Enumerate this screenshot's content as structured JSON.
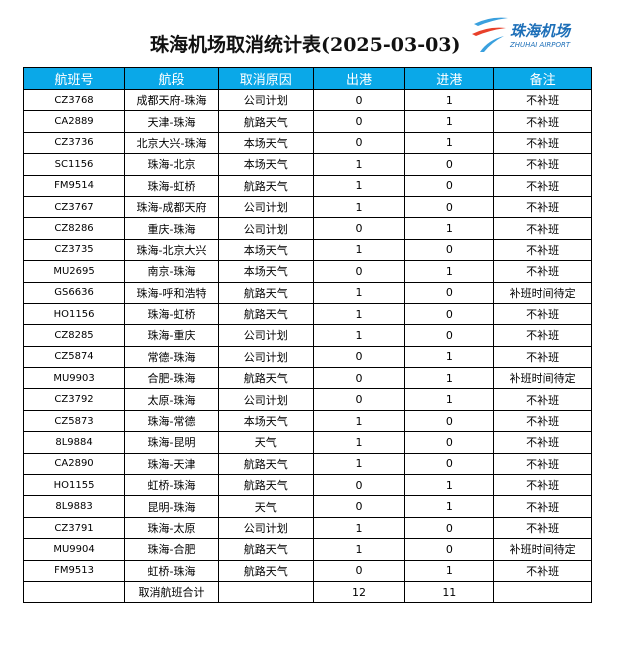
{
  "title": "珠海机场取消统计表(2025-03-03)",
  "logo": {
    "cn": "珠海机场",
    "en": "ZHUHAI AIRPORT"
  },
  "headers": [
    "航班号",
    "航段",
    "取消原因",
    "出港",
    "进港",
    "备注"
  ],
  "rows": [
    [
      "CZ3768",
      "成都天府-珠海",
      "公司计划",
      "0",
      "1",
      "不补班"
    ],
    [
      "CA2889",
      "天津-珠海",
      "航路天气",
      "0",
      "1",
      "不补班"
    ],
    [
      "CZ3736",
      "北京大兴-珠海",
      "本场天气",
      "0",
      "1",
      "不补班"
    ],
    [
      "SC1156",
      "珠海-北京",
      "本场天气",
      "1",
      "0",
      "不补班"
    ],
    [
      "FM9514",
      "珠海-虹桥",
      "航路天气",
      "1",
      "0",
      "不补班"
    ],
    [
      "CZ3767",
      "珠海-成都天府",
      "公司计划",
      "1",
      "0",
      "不补班"
    ],
    [
      "CZ8286",
      "重庆-珠海",
      "公司计划",
      "0",
      "1",
      "不补班"
    ],
    [
      "CZ3735",
      "珠海-北京大兴",
      "本场天气",
      "1",
      "0",
      "不补班"
    ],
    [
      "MU2695",
      "南京-珠海",
      "本场天气",
      "0",
      "1",
      "不补班"
    ],
    [
      "GS6636",
      "珠海-呼和浩特",
      "航路天气",
      "1",
      "0",
      "补班时间待定"
    ],
    [
      "HO1156",
      "珠海-虹桥",
      "航路天气",
      "1",
      "0",
      "不补班"
    ],
    [
      "CZ8285",
      "珠海-重庆",
      "公司计划",
      "1",
      "0",
      "不补班"
    ],
    [
      "CZ5874",
      "常德-珠海",
      "公司计划",
      "0",
      "1",
      "不补班"
    ],
    [
      "MU9903",
      "合肥-珠海",
      "航路天气",
      "0",
      "1",
      "补班时间待定"
    ],
    [
      "CZ3792",
      "太原-珠海",
      "公司计划",
      "0",
      "1",
      "不补班"
    ],
    [
      "CZ5873",
      "珠海-常德",
      "本场天气",
      "1",
      "0",
      "不补班"
    ],
    [
      "8L9884",
      "珠海-昆明",
      "天气",
      "1",
      "0",
      "不补班"
    ],
    [
      "CA2890",
      "珠海-天津",
      "航路天气",
      "1",
      "0",
      "不补班"
    ],
    [
      "HO1155",
      "虹桥-珠海",
      "航路天气",
      "0",
      "1",
      "不补班"
    ],
    [
      "8L9883",
      "昆明-珠海",
      "天气",
      "0",
      "1",
      "不补班"
    ],
    [
      "CZ3791",
      "珠海-太原",
      "公司计划",
      "1",
      "0",
      "不补班"
    ],
    [
      "MU9904",
      "珠海-合肥",
      "航路天气",
      "1",
      "0",
      "补班时间待定"
    ],
    [
      "FM9513",
      "虹桥-珠海",
      "航路天气",
      "0",
      "1",
      "不补班"
    ]
  ],
  "total": {
    "label": "取消航班合计",
    "out": "12",
    "in": "11"
  },
  "colors": {
    "header_bg": "#0aa8e8",
    "logo_blue": "#1d6fb8",
    "logo_red": "#e8402a"
  }
}
